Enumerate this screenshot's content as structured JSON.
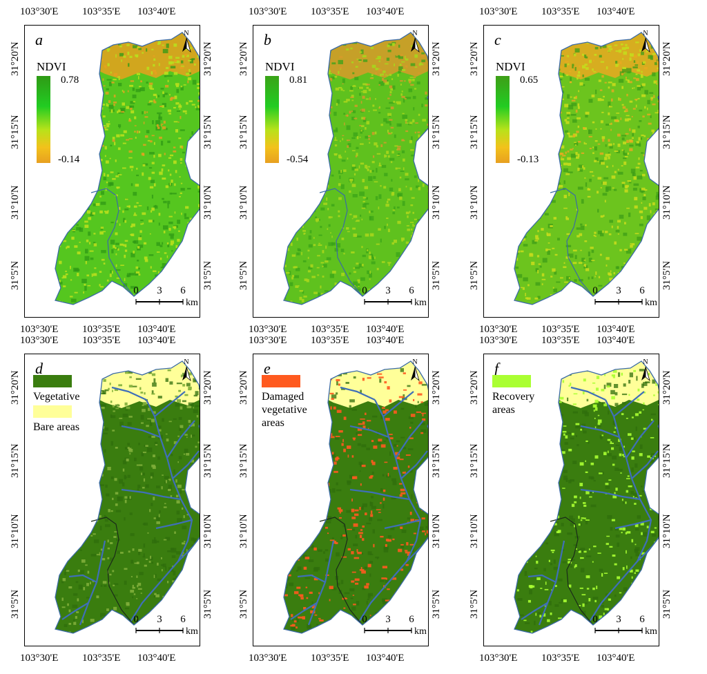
{
  "lon_ticks": [
    "103°30'E",
    "103°35'E",
    "103°40'E"
  ],
  "lat_ticks": [
    "31°20'N",
    "31°15'N",
    "31°10'N",
    "31°5'N"
  ],
  "north_label": "N",
  "scale_bar": {
    "ticks": [
      "0",
      "3",
      "6"
    ],
    "unit": "km"
  },
  "panels": [
    {
      "id": "a",
      "legend_type": "ramp",
      "legend_title": "NDVI",
      "max": "0.78",
      "min": "-0.14",
      "colors": {
        "base": "#55c61f",
        "dark": "#2f9a15",
        "light": "#b9df1d",
        "bare": "#e7a01f"
      }
    },
    {
      "id": "b",
      "legend_type": "ramp",
      "legend_title": "NDVI",
      "max": "0.81",
      "min": "-0.54",
      "colors": {
        "base": "#5fc11e",
        "dark": "#3aa318",
        "light": "#a7d61c",
        "bare": "#d89a2a"
      }
    },
    {
      "id": "c",
      "legend_type": "ramp",
      "legend_title": "NDVI",
      "max": "0.65",
      "min": "-0.13",
      "colors": {
        "base": "#6cc41e",
        "dark": "#3e9e17",
        "light": "#c5dc1c",
        "bare": "#eaa921"
      }
    },
    {
      "id": "d",
      "legend_type": "classes",
      "legend_items": [
        {
          "label": "Vegetative areas",
          "color": "#3a7d0f"
        },
        {
          "label": "Bare areas",
          "color": "#ffff99"
        }
      ],
      "colors": {
        "base": "#3a7d0f",
        "dark": "#2f6e0c",
        "light": "#7fae3a",
        "bare": "#ffff99",
        "river": "#3f6fb8"
      }
    },
    {
      "id": "e",
      "legend_type": "classes",
      "legend_items": [
        {
          "label": "Damaged vegetative areas",
          "color": "#ff5a1f"
        }
      ],
      "colors": {
        "base": "#3a7d0f",
        "dark": "#2f6e0c",
        "light": "#ff5a1f",
        "bare": "#ffff99",
        "river": "#3f6fb8"
      }
    },
    {
      "id": "f",
      "legend_type": "classes",
      "legend_items": [
        {
          "label": "Recovery areas",
          "color": "#aaff32"
        }
      ],
      "colors": {
        "base": "#3a7d0f",
        "dark": "#2f6e0c",
        "light": "#aaff32",
        "bare": "#ffff99",
        "river": "#3f6fb8"
      }
    }
  ]
}
